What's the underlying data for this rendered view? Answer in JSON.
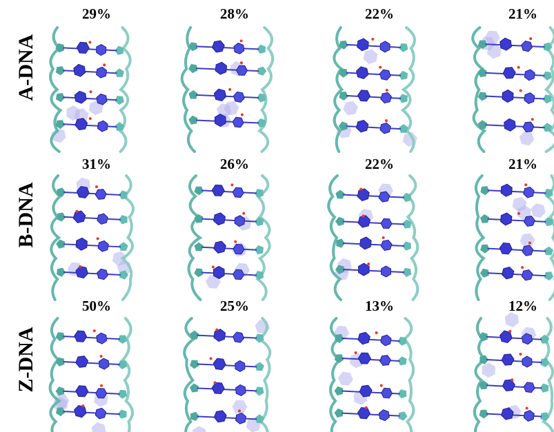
{
  "rows": [
    {
      "label": "A-DNA",
      "percentages": [
        "29%",
        "28%",
        "22%",
        "21%"
      ]
    },
    {
      "label": "B-DNA",
      "percentages": [
        "31%",
        "26%",
        "22%",
        "21%"
      ]
    },
    {
      "label": "Z-DNA",
      "percentages": [
        "50%",
        "25%",
        "13%",
        "12%"
      ]
    }
  ]
}
